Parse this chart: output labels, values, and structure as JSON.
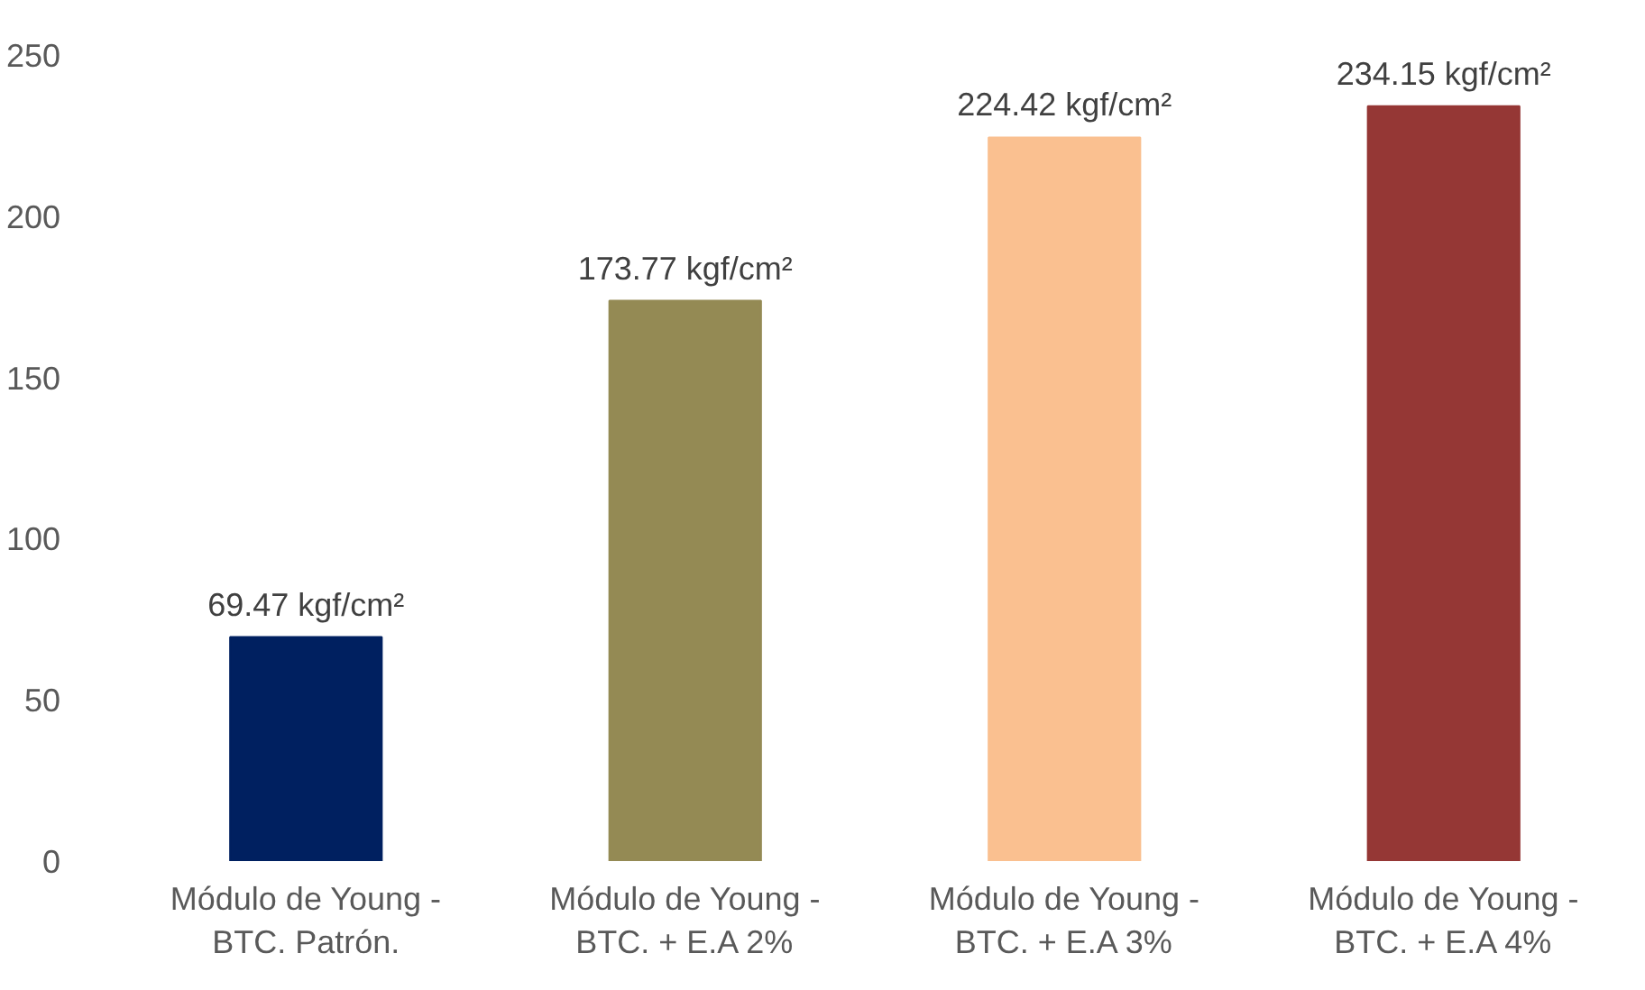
{
  "chart_data": {
    "type": "bar",
    "categories": [
      "Módulo de Young -\nBTC. Patrón.",
      "Módulo de Young -\nBTC. + E.A 2%",
      "Módulo de Young -\nBTC. + E.A 3%",
      "Módulo de Young -\nBTC. + E.A 4%"
    ],
    "values": [
      69.47,
      173.77,
      224.42,
      234.15
    ],
    "colors": [
      "#002060",
      "#948a54",
      "#fac090",
      "#953735"
    ],
    "value_labels": [
      "69.47 kgf/cm²",
      "173.77 kgf/cm²",
      "224.42 kgf/cm²",
      "234.15 kgf/cm²"
    ],
    "ylim": [
      0,
      250
    ],
    "yticks": [
      0,
      50,
      100,
      150,
      200,
      250
    ],
    "grid": false
  }
}
